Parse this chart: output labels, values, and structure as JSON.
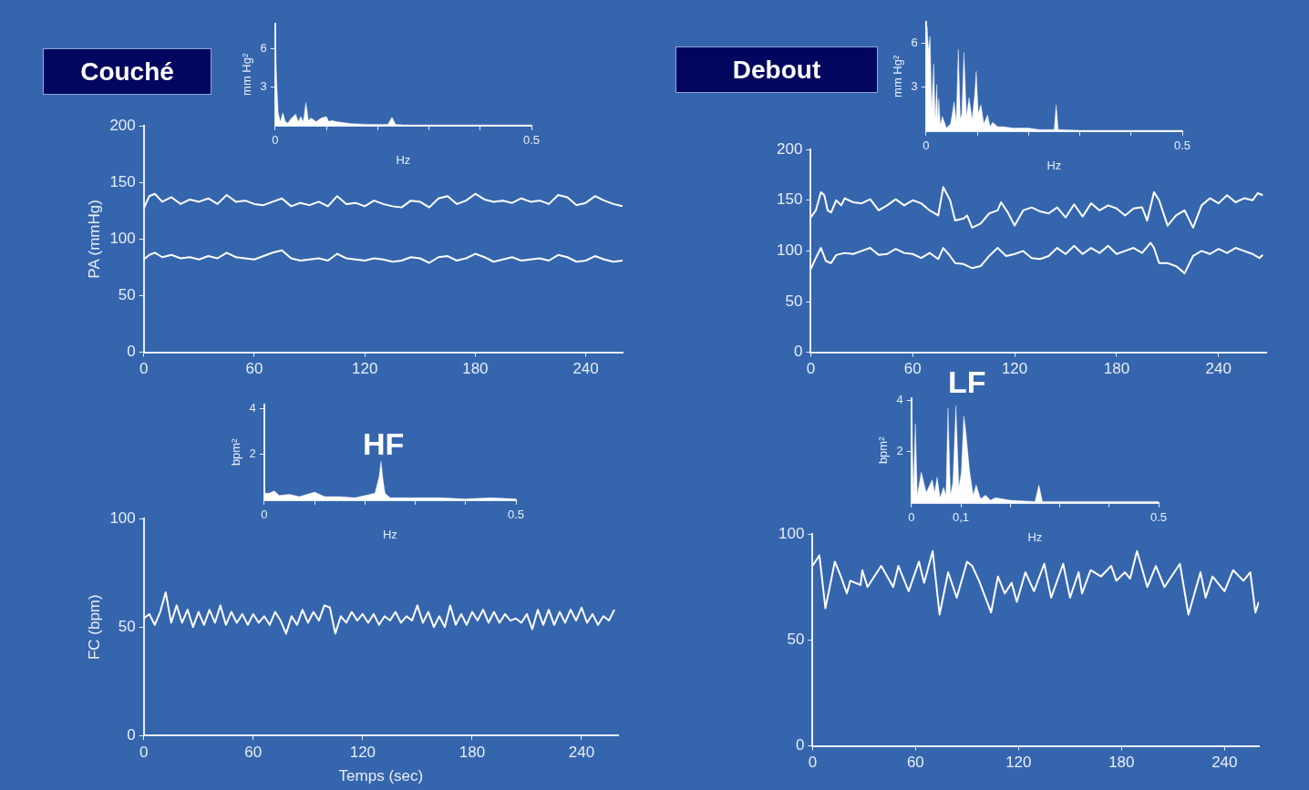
{
  "chart_data": [
    {
      "type": "area",
      "ylabel": "mm Hg²",
      "xlabel": "Hz",
      "xlim": [
        0,
        0.5
      ],
      "ylim": [
        0,
        8
      ],
      "xticks": [
        0,
        {
          "value": 0.1,
          "label": null
        },
        {
          "value": 0.2,
          "label": null
        },
        {
          "value": 0.3,
          "label": null
        },
        {
          "value": 0.4,
          "label": null
        },
        0.5
      ],
      "yticks": [
        3,
        6
      ],
      "series": [
        {
          "color": "#ffffff",
          "x": [
            0,
            0.003,
            0.006,
            0.01,
            0.015,
            0.02,
            0.025,
            0.03,
            0.04,
            0.045,
            0.05,
            0.055,
            0.06,
            0.065,
            0.07,
            0.08,
            0.09,
            0.1,
            0.105,
            0.11,
            0.12,
            0.15,
            0.18,
            0.2,
            0.22,
            0.228,
            0.235,
            0.25,
            0.3,
            0.35,
            0.4,
            0.45,
            0.5
          ],
          "values": [
            7.8,
            3.5,
            1.0,
            0.3,
            1.0,
            0.3,
            0.2,
            0.5,
            0.9,
            0.3,
            0.7,
            0.3,
            1.8,
            0.4,
            0.6,
            0.3,
            0.6,
            0.7,
            0.3,
            0.4,
            0.3,
            0.15,
            0.1,
            0.1,
            0.1,
            0.65,
            0.1,
            0.05,
            0.05,
            0.05,
            0.05,
            0.05,
            0.05
          ]
        }
      ]
    },
    {
      "type": "area",
      "ylabel": "mm Hg²",
      "xlabel": "Hz",
      "xlim": [
        0,
        0.5
      ],
      "ylim": [
        0,
        7.5
      ],
      "xticks": [
        0,
        {
          "value": 0.1,
          "label": null
        },
        {
          "value": 0.2,
          "label": null
        },
        {
          "value": 0.3,
          "label": null
        },
        {
          "value": 0.4,
          "label": null
        },
        0.5
      ],
      "yticks": [
        3,
        6
      ],
      "series": [
        {
          "color": "#ffffff",
          "x": [
            0,
            0.002,
            0.005,
            0.008,
            0.011,
            0.015,
            0.018,
            0.021,
            0.023,
            0.025,
            0.028,
            0.032,
            0.04,
            0.048,
            0.055,
            0.059,
            0.063,
            0.067,
            0.07,
            0.074,
            0.079,
            0.084,
            0.09,
            0.095,
            0.098,
            0.102,
            0.107,
            0.113,
            0.12,
            0.125,
            0.13,
            0.14,
            0.15,
            0.17,
            0.2,
            0.22,
            0.25,
            0.254,
            0.258,
            0.3,
            0.35,
            0.4,
            0.45,
            0.5
          ],
          "values": [
            5,
            7.2,
            5.5,
            6.5,
            1.5,
            4.6,
            0.8,
            3.2,
            0.7,
            2.2,
            0.4,
            1.0,
            0.2,
            0.5,
            2.0,
            0.6,
            5.6,
            0.8,
            1.2,
            5.4,
            1.0,
            2.3,
            0.8,
            2.5,
            4.1,
            1.2,
            1.8,
            0.5,
            1.1,
            0.3,
            0.6,
            0.3,
            0.3,
            0.2,
            0.2,
            0.1,
            0.1,
            1.8,
            0.1,
            0.05,
            0.05,
            0.05,
            0.05,
            0.05
          ]
        }
      ]
    },
    {
      "type": "line",
      "title": "Couché",
      "ylabel": "PA (mmHg)",
      "xlim": [
        0,
        260
      ],
      "ylim": [
        0,
        200
      ],
      "xticks": [
        0,
        60,
        120,
        180,
        240
      ],
      "yticks": [
        0,
        50,
        100,
        150,
        200
      ],
      "x": [
        0,
        3,
        6,
        10,
        15,
        20,
        25,
        30,
        35,
        40,
        45,
        50,
        55,
        60,
        65,
        70,
        75,
        80,
        85,
        90,
        95,
        100,
        105,
        110,
        115,
        120,
        125,
        130,
        135,
        140,
        145,
        150,
        155,
        160,
        165,
        170,
        175,
        180,
        185,
        190,
        195,
        200,
        205,
        210,
        215,
        220,
        225,
        230,
        235,
        240,
        245,
        250,
        255,
        260
      ],
      "series": [
        {
          "color": "#ffffff",
          "values": [
            127,
            138,
            140,
            133,
            137,
            131,
            135,
            133,
            136,
            131,
            139,
            133,
            134,
            131,
            130,
            133,
            136,
            129,
            132,
            130,
            133,
            129,
            138,
            131,
            132,
            129,
            134,
            131,
            129,
            128,
            134,
            133,
            128,
            136,
            138,
            131,
            134,
            140,
            135,
            133,
            134,
            132,
            136,
            133,
            134,
            131,
            139,
            137,
            130,
            132,
            138,
            134,
            131,
            129
          ]
        },
        {
          "color": "#ffffff",
          "values": [
            82,
            86,
            88,
            84,
            86,
            83,
            84,
            82,
            85,
            83,
            88,
            84,
            83,
            82,
            85,
            88,
            90,
            83,
            81,
            82,
            83,
            81,
            87,
            83,
            82,
            81,
            83,
            82,
            80,
            81,
            84,
            83,
            79,
            84,
            85,
            81,
            83,
            87,
            84,
            80,
            82,
            84,
            81,
            82,
            83,
            81,
            86,
            84,
            80,
            81,
            85,
            82,
            80,
            81
          ]
        }
      ]
    },
    {
      "type": "line",
      "title": "Debout",
      "xlim": [
        0,
        268
      ],
      "ylim": [
        0,
        200
      ],
      "xticks": [
        0,
        60,
        120,
        180,
        240
      ],
      "yticks": [
        0,
        50,
        100,
        150,
        200
      ],
      "series": [
        {
          "color": "#ffffff",
          "x": [
            0,
            3,
            6,
            8,
            10,
            12,
            15,
            18,
            20,
            25,
            30,
            35,
            40,
            45,
            50,
            55,
            60,
            65,
            70,
            75,
            78,
            82,
            85,
            90,
            92,
            95,
            100,
            105,
            110,
            112,
            116,
            120,
            125,
            130,
            135,
            140,
            145,
            150,
            155,
            160,
            165,
            170,
            175,
            180,
            185,
            190,
            195,
            198,
            202,
            205,
            210,
            215,
            220,
            225,
            230,
            235,
            240,
            245,
            250,
            255,
            260,
            263,
            266
          ],
          "values": [
            133,
            140,
            158,
            155,
            140,
            138,
            150,
            145,
            152,
            148,
            147,
            151,
            140,
            145,
            151,
            145,
            150,
            147,
            140,
            135,
            163,
            150,
            130,
            132,
            135,
            123,
            127,
            137,
            140,
            148,
            138,
            125,
            140,
            143,
            139,
            137,
            143,
            133,
            146,
            134,
            147,
            140,
            145,
            142,
            135,
            142,
            143,
            130,
            158,
            150,
            125,
            135,
            140,
            123,
            145,
            152,
            147,
            155,
            148,
            152,
            150,
            157,
            155
          ]
        },
        {
          "color": "#ffffff",
          "x": [
            0,
            3,
            6,
            9,
            12,
            15,
            20,
            25,
            30,
            35,
            40,
            45,
            50,
            55,
            60,
            65,
            70,
            75,
            78,
            82,
            85,
            90,
            95,
            100,
            105,
            110,
            115,
            120,
            125,
            130,
            135,
            140,
            145,
            150,
            155,
            160,
            165,
            170,
            175,
            180,
            185,
            190,
            195,
            200,
            202,
            205,
            210,
            215,
            220,
            225,
            230,
            235,
            240,
            245,
            250,
            255,
            260,
            264,
            266
          ],
          "values": [
            82,
            93,
            103,
            90,
            88,
            96,
            98,
            97,
            100,
            103,
            96,
            97,
            102,
            98,
            97,
            93,
            98,
            92,
            103,
            95,
            88,
            87,
            83,
            85,
            95,
            103,
            95,
            97,
            100,
            93,
            92,
            95,
            103,
            97,
            105,
            97,
            103,
            98,
            105,
            97,
            100,
            103,
            98,
            108,
            103,
            88,
            88,
            85,
            78,
            95,
            100,
            97,
            102,
            98,
            103,
            100,
            97,
            93,
            96
          ]
        }
      ]
    },
    {
      "type": "area",
      "ylabel": "bpm²",
      "xlabel": "Hz",
      "annotations": [
        "HF"
      ],
      "xlim": [
        0,
        0.5
      ],
      "ylim": [
        0,
        4.2
      ],
      "xticks": [
        0,
        {
          "value": 0.1,
          "label": null
        },
        {
          "value": 0.2,
          "label": null
        },
        {
          "value": 0.3,
          "label": null
        },
        {
          "value": 0.4,
          "label": null
        },
        0.5
      ],
      "yticks": [
        2,
        4
      ],
      "series": [
        {
          "color": "#ffffff",
          "x": [
            0,
            0.01,
            0.02,
            0.03,
            0.05,
            0.07,
            0.1,
            0.12,
            0.15,
            0.18,
            0.2,
            0.22,
            0.228,
            0.232,
            0.236,
            0.24,
            0.25,
            0.3,
            0.35,
            0.4,
            0.45,
            0.5
          ],
          "values": [
            0.3,
            0.3,
            0.4,
            0.2,
            0.25,
            0.15,
            0.35,
            0.15,
            0.15,
            0.1,
            0.2,
            0.3,
            1.0,
            1.7,
            0.9,
            0.3,
            0.1,
            0.1,
            0.1,
            0.05,
            0.1,
            0.05
          ]
        }
      ]
    },
    {
      "type": "area",
      "ylabel": "bpm²",
      "xlabel": "Hz",
      "annotations": [
        "LF"
      ],
      "xlim": [
        0,
        0.5
      ],
      "ylim": [
        0,
        4.1
      ],
      "xticks": [
        0,
        {
          "value": 0.1,
          "label": "0,1"
        },
        {
          "value": 0.2,
          "label": null
        },
        {
          "value": 0.3,
          "label": null
        },
        {
          "value": 0.4,
          "label": null
        },
        0.5
      ],
      "yticks": [
        2,
        4
      ],
      "series": [
        {
          "color": "#ffffff",
          "x": [
            0,
            0.001,
            0.004,
            0.008,
            0.012,
            0.02,
            0.03,
            0.042,
            0.047,
            0.052,
            0.058,
            0.065,
            0.07,
            0.074,
            0.079,
            0.084,
            0.09,
            0.096,
            0.101,
            0.106,
            0.11,
            0.118,
            0.125,
            0.131,
            0.14,
            0.15,
            0.16,
            0.17,
            0.2,
            0.25,
            0.258,
            0.265,
            0.3,
            0.4,
            0.5
          ],
          "values": [
            0.5,
            3.5,
            0.4,
            3.1,
            0.3,
            1.2,
            0.4,
            0.9,
            0.4,
            1.0,
            0.2,
            0.6,
            0.3,
            3.7,
            0.3,
            0.8,
            3.8,
            0.6,
            1.2,
            3.4,
            2.8,
            1.2,
            0.3,
            0.7,
            0.15,
            0.3,
            0.1,
            0.2,
            0.1,
            0.05,
            0.7,
            0.05,
            0.05,
            0.05,
            0.05
          ]
        }
      ]
    },
    {
      "type": "line",
      "ylabel": "FC (bpm)",
      "xlabel": "Temps (sec)",
      "xlim": [
        0,
        260
      ],
      "ylim": [
        0,
        100
      ],
      "xticks": [
        0,
        60,
        120,
        180,
        240
      ],
      "yticks": [
        0,
        50,
        100
      ],
      "series": [
        {
          "color": "#ffffff",
          "x": [
            0,
            3,
            6,
            9,
            12,
            15,
            18,
            21,
            24,
            27,
            30,
            33,
            36,
            39,
            42,
            45,
            48,
            51,
            54,
            57,
            60,
            63,
            66,
            69,
            72,
            75,
            78,
            81,
            84,
            87,
            90,
            93,
            96,
            99,
            102,
            105,
            108,
            111,
            114,
            117,
            120,
            123,
            126,
            129,
            132,
            135,
            138,
            141,
            144,
            147,
            150,
            153,
            156,
            159,
            162,
            165,
            168,
            171,
            174,
            177,
            180,
            183,
            186,
            189,
            192,
            195,
            198,
            201,
            204,
            207,
            210,
            213,
            216,
            219,
            222,
            225,
            228,
            231,
            234,
            237,
            240,
            243,
            246,
            249,
            252,
            255,
            258
          ],
          "values": [
            54,
            56,
            51,
            57,
            66,
            52,
            60,
            52,
            58,
            50,
            57,
            51,
            58,
            52,
            60,
            51,
            57,
            52,
            56,
            51,
            56,
            52,
            55,
            51,
            57,
            53,
            47,
            55,
            51,
            58,
            52,
            57,
            53,
            60,
            59,
            47,
            55,
            52,
            57,
            53,
            56,
            52,
            56,
            51,
            55,
            53,
            57,
            52,
            55,
            53,
            60,
            52,
            57,
            50,
            55,
            50,
            60,
            51,
            56,
            51,
            57,
            53,
            58,
            52,
            57,
            52,
            56,
            53,
            54,
            52,
            56,
            49,
            58,
            51,
            58,
            51,
            57,
            52,
            58,
            53,
            59,
            52,
            56,
            51,
            55,
            53,
            58
          ]
        }
      ]
    },
    {
      "type": "line",
      "xlim": [
        0,
        260
      ],
      "ylim": [
        0,
        100
      ],
      "xticks": [
        0,
        60,
        120,
        180,
        240
      ],
      "yticks": [
        0,
        50,
        100
      ],
      "series": [
        {
          "color": "#ffffff",
          "x": [
            0,
            4,
            7.5,
            13,
            16.5,
            20,
            22,
            28,
            29,
            32,
            40,
            47,
            50,
            56,
            62,
            65,
            70,
            74,
            79,
            84,
            90,
            93,
            97,
            104,
            108,
            112,
            116,
            119,
            124,
            129,
            135,
            139,
            146,
            150,
            155,
            157,
            162,
            168,
            174,
            177,
            182,
            185,
            189,
            195,
            200,
            205,
            214,
            219,
            226,
            229,
            233,
            240,
            245,
            251,
            255,
            258,
            260
          ],
          "values": [
            85,
            90,
            65,
            87,
            80,
            72,
            78,
            76,
            83,
            75,
            85,
            75,
            85,
            73,
            87,
            77,
            92,
            62,
            82,
            70,
            87,
            85,
            78,
            63,
            80,
            72,
            77,
            68,
            82,
            73,
            86,
            70,
            86,
            70,
            82,
            72,
            83,
            80,
            85,
            78,
            82,
            79,
            92,
            75,
            85,
            75,
            86,
            62,
            82,
            70,
            80,
            73,
            83,
            78,
            82,
            63,
            68
          ]
        }
      ]
    }
  ]
}
